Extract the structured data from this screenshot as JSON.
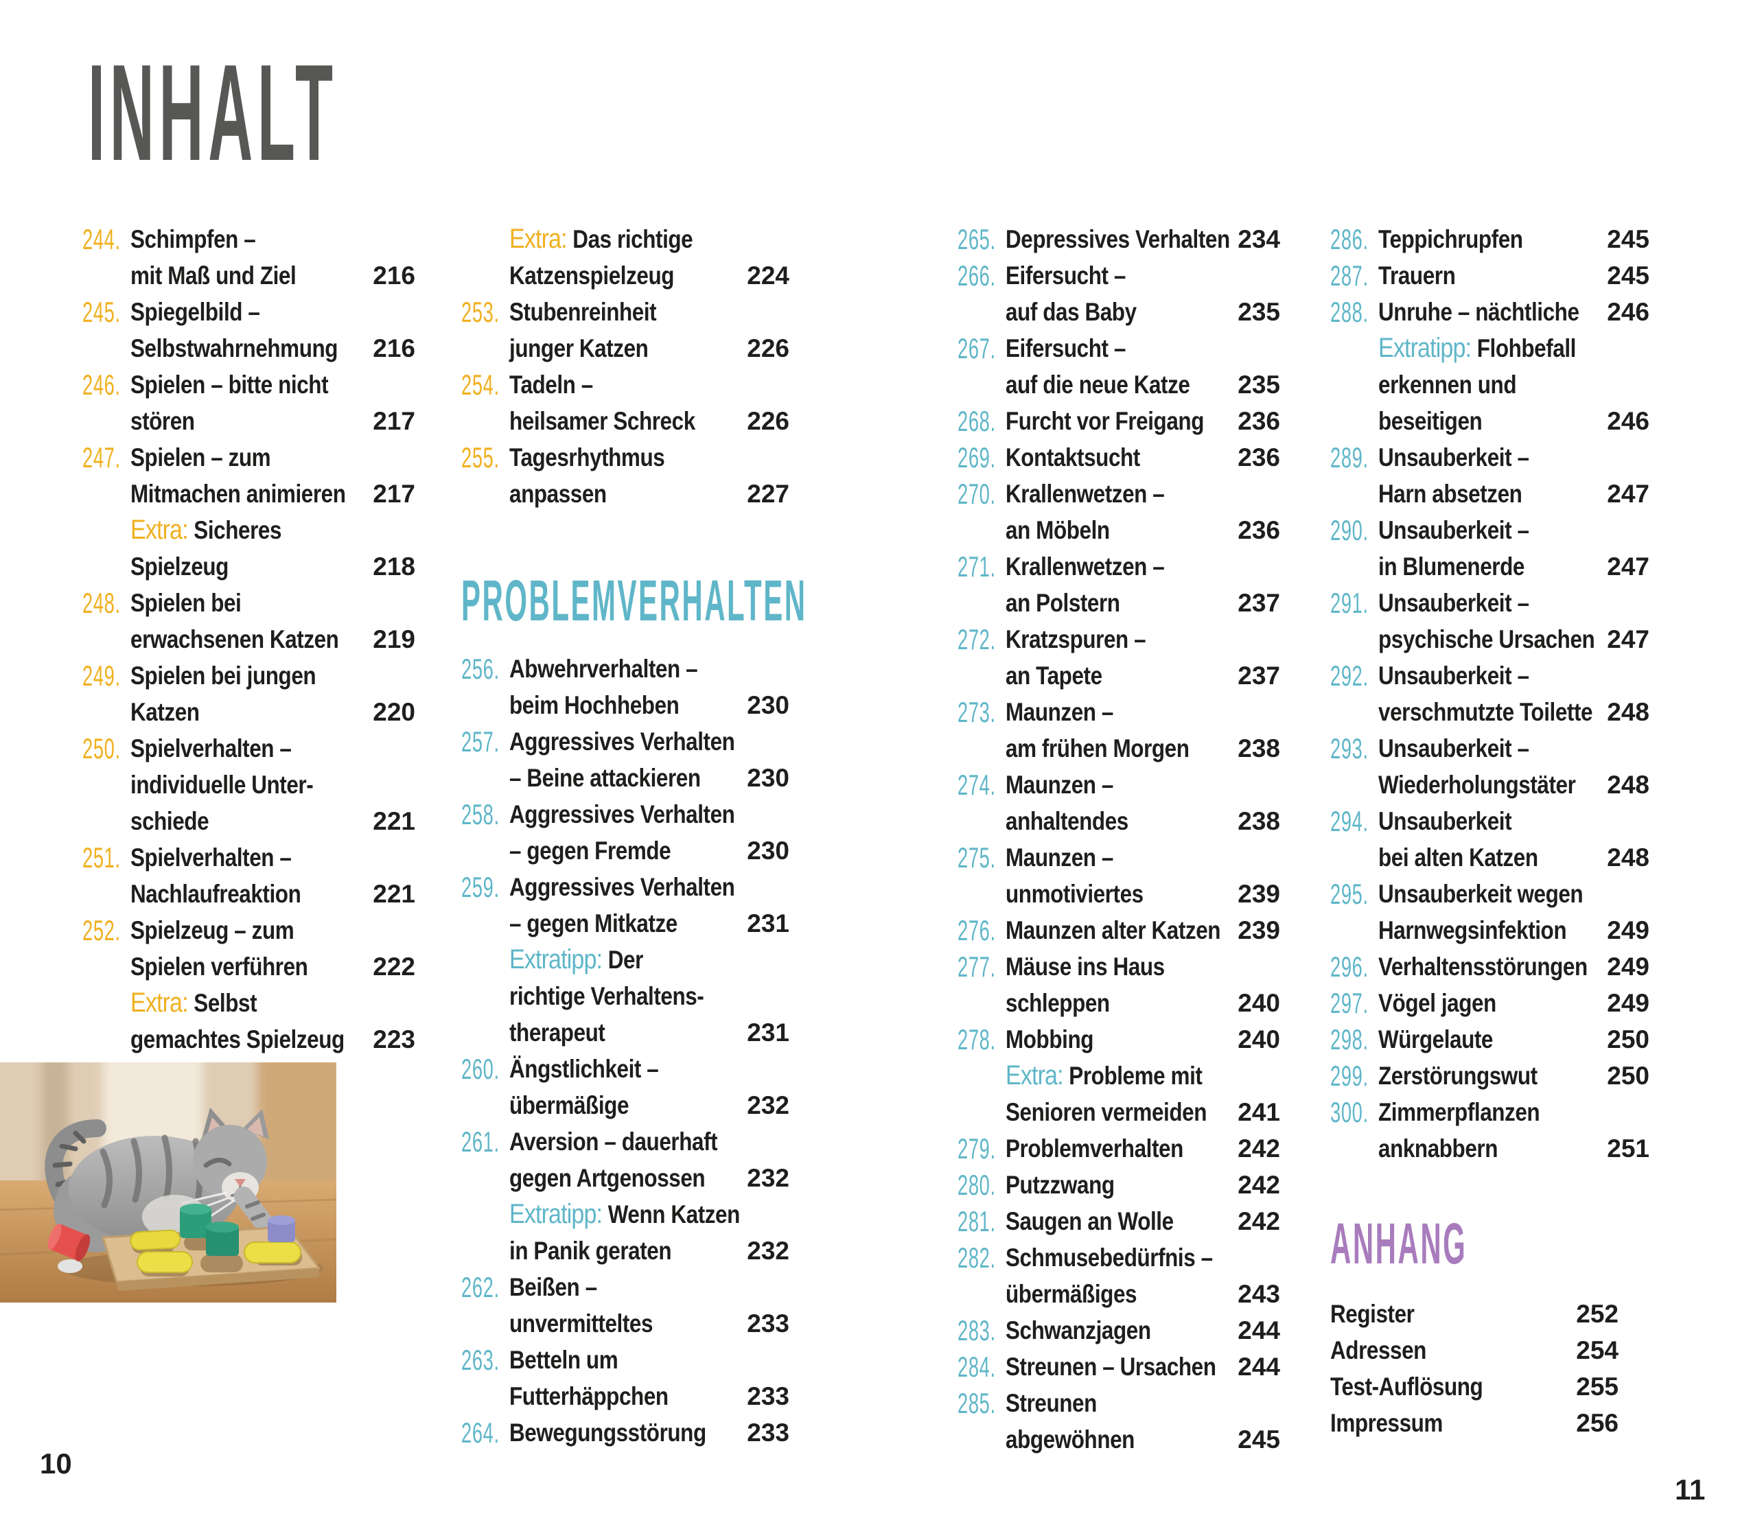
{
  "page": {
    "title": "INHALT",
    "page_number_left": "10",
    "page_number_right": "11"
  },
  "sections": {
    "problemverhalten_heading": "PROBLEMVERHALTEN",
    "anhang_heading": "ANHANG"
  },
  "colors": {
    "yellow": "#f0b01f",
    "blue": "#5fb6c8",
    "purple": "#a87cbc",
    "text": "#1e1e1c",
    "title_gray": "#575755"
  },
  "photo": {
    "alt": "Graue getigerte Katze spielt mit einem Holz-Strategiebrett mit bunten Kegeln"
  },
  "columns": {
    "col1": [
      {
        "n": "244.",
        "t": "Schimpfen –"
      },
      {
        "t": "mit Maß und Ziel",
        "p": "216"
      },
      {
        "n": "245.",
        "t": "Spiegelbild –"
      },
      {
        "t": "Selbstwahrnehmung",
        "p": "216"
      },
      {
        "n": "246.",
        "t": "Spielen – bitte nicht"
      },
      {
        "t": "stören",
        "p": "217"
      },
      {
        "n": "247.",
        "t": "Spielen – zum"
      },
      {
        "t": "Mitmachen animieren",
        "p": "217"
      },
      {
        "x": "Extra:",
        "t": "Sicheres"
      },
      {
        "t": "Spielzeug",
        "p": "218"
      },
      {
        "n": "248.",
        "t": "Spielen bei"
      },
      {
        "t": "erwachsenen Katzen",
        "p": "219"
      },
      {
        "n": "249.",
        "t": "Spielen bei jungen"
      },
      {
        "t": "Katzen",
        "p": "220"
      },
      {
        "n": "250.",
        "t": "Spielverhalten –"
      },
      {
        "t": "individuelle Unter-"
      },
      {
        "t": "schiede",
        "p": "221"
      },
      {
        "n": "251.",
        "t": "Spielverhalten –"
      },
      {
        "t": "Nachlaufreaktion",
        "p": "221"
      },
      {
        "n": "252.",
        "t": "Spielzeug – zum"
      },
      {
        "t": "Spielen verführen",
        "p": "222"
      },
      {
        "x": "Extra:",
        "t": "Selbst"
      },
      {
        "t": "gemachtes Spielzeug",
        "p": "223"
      }
    ],
    "col2_top": [
      {
        "x": "Extra:",
        "t": "Das richtige"
      },
      {
        "t": "Katzenspielzeug",
        "p": "224"
      },
      {
        "n": "253.",
        "t": "Stubenreinheit"
      },
      {
        "t": "junger Katzen",
        "p": "226"
      },
      {
        "n": "254.",
        "t": "Tadeln –"
      },
      {
        "t": "heilsamer Schreck",
        "p": "226"
      },
      {
        "n": "255.",
        "t": "Tagesrhythmus"
      },
      {
        "t": "anpassen",
        "p": "227"
      }
    ],
    "col2_bottom": [
      {
        "n": "256.",
        "t": "Abwehrverhalten –"
      },
      {
        "t": "beim Hochheben",
        "p": "230"
      },
      {
        "n": "257.",
        "t": "Aggressives Verhalten"
      },
      {
        "t": "– Beine attackieren",
        "p": "230"
      },
      {
        "n": "258.",
        "t": "Aggressives Verhalten"
      },
      {
        "t": "– gegen Fremde",
        "p": "230"
      },
      {
        "n": "259.",
        "t": "Aggressives Verhalten"
      },
      {
        "t": "– gegen Mitkatze",
        "p": "231"
      },
      {
        "x": "Extratipp:",
        "t": "Der"
      },
      {
        "t": "richtige Verhaltens-"
      },
      {
        "t": "therapeut",
        "p": "231"
      },
      {
        "n": "260.",
        "t": "Ängstlichkeit –"
      },
      {
        "t": "übermäßige",
        "p": "232"
      },
      {
        "n": "261.",
        "t": "Aversion – dauerhaft"
      },
      {
        "t": "gegen Artgenossen",
        "p": "232"
      },
      {
        "x": "Extratipp:",
        "t": "Wenn Katzen"
      },
      {
        "t": "in Panik geraten",
        "p": "232"
      },
      {
        "n": "262.",
        "t": "Beißen –"
      },
      {
        "t": "unvermitteltes",
        "p": "233"
      },
      {
        "n": "263.",
        "t": "Betteln um"
      },
      {
        "t": "Futterhäppchen",
        "p": "233"
      },
      {
        "n": "264.",
        "t": "Bewegungsstörung",
        "p": "233"
      }
    ],
    "col3": [
      {
        "n": "265.",
        "t": "Depressives Verhalten",
        "p": "234"
      },
      {
        "n": "266.",
        "t": "Eifersucht –"
      },
      {
        "t": "auf das Baby",
        "p": "235"
      },
      {
        "n": "267.",
        "t": "Eifersucht –"
      },
      {
        "t": "auf die neue Katze",
        "p": "235"
      },
      {
        "n": "268.",
        "t": "Furcht vor Freigang",
        "p": "236"
      },
      {
        "n": "269.",
        "t": "Kontaktsucht",
        "p": "236"
      },
      {
        "n": "270.",
        "t": "Krallenwetzen –"
      },
      {
        "t": "an Möbeln",
        "p": "236"
      },
      {
        "n": "271.",
        "t": "Krallenwetzen –"
      },
      {
        "t": "an Polstern",
        "p": "237"
      },
      {
        "n": "272.",
        "t": "Kratzspuren –"
      },
      {
        "t": "an Tapete",
        "p": "237"
      },
      {
        "n": "273.",
        "t": "Maunzen –"
      },
      {
        "t": "am frühen Morgen",
        "p": "238"
      },
      {
        "n": "274.",
        "t": "Maunzen –"
      },
      {
        "t": "anhaltendes",
        "p": "238"
      },
      {
        "n": "275.",
        "t": "Maunzen –"
      },
      {
        "t": "unmotiviertes",
        "p": "239"
      },
      {
        "n": "276.",
        "t": "Maunzen alter Katzen",
        "p": "239"
      },
      {
        "n": "277.",
        "t": "Mäuse ins Haus"
      },
      {
        "t": "schleppen",
        "p": "240"
      },
      {
        "n": "278.",
        "t": "Mobbing",
        "p": "240"
      },
      {
        "x": "Extra:",
        "t": "Probleme mit"
      },
      {
        "t": "Senioren vermeiden",
        "p": "241"
      },
      {
        "n": "279.",
        "t": "Problemverhalten",
        "p": "242"
      },
      {
        "n": "280.",
        "t": "Putzzwang",
        "p": "242"
      },
      {
        "n": "281.",
        "t": "Saugen an Wolle",
        "p": "242"
      },
      {
        "n": "282.",
        "t": "Schmusebedürfnis –"
      },
      {
        "t": "übermäßiges",
        "p": "243"
      },
      {
        "n": "283.",
        "t": "Schwanzjagen",
        "p": "244"
      },
      {
        "n": "284.",
        "t": "Streunen – Ursachen",
        "p": "244"
      },
      {
        "n": "285.",
        "t": "Streunen"
      },
      {
        "t": "abgewöhnen",
        "p": "245"
      }
    ],
    "col4": [
      {
        "n": "286.",
        "t": "Teppichrupfen",
        "p": "245"
      },
      {
        "n": "287.",
        "t": "Trauern",
        "p": "245"
      },
      {
        "n": "288.",
        "t": "Unruhe – nächtliche",
        "p": "246"
      },
      {
        "x": "Extratipp:",
        "t": "Flohbefall"
      },
      {
        "t": "erkennen und"
      },
      {
        "t": "beseitigen",
        "p": "246"
      },
      {
        "n": "289.",
        "t": "Unsauberkeit –"
      },
      {
        "t": "Harn absetzen",
        "p": "247"
      },
      {
        "n": "290.",
        "t": "Unsauberkeit –"
      },
      {
        "t": "in Blumenerde",
        "p": "247"
      },
      {
        "n": "291.",
        "t": "Unsauberkeit –"
      },
      {
        "t": "psychische Ursachen",
        "p": "247"
      },
      {
        "n": "292.",
        "t": "Unsauberkeit –"
      },
      {
        "t": "verschmutzte Toilette",
        "p": "248"
      },
      {
        "n": "293.",
        "t": "Unsauberkeit –"
      },
      {
        "t": "Wiederholungstäter",
        "p": "248"
      },
      {
        "n": "294.",
        "t": "Unsauberkeit"
      },
      {
        "t": "bei alten Katzen",
        "p": "248"
      },
      {
        "n": "295.",
        "t": "Unsauberkeit wegen"
      },
      {
        "t": "Harnwegsinfektion",
        "p": "249"
      },
      {
        "n": "296.",
        "t": "Verhaltensstörungen",
        "p": "249"
      },
      {
        "n": "297.",
        "t": "Vögel jagen",
        "p": "249"
      },
      {
        "n": "298.",
        "t": "Würgelaute",
        "p": "250"
      },
      {
        "n": "299.",
        "t": "Zerstörungswut",
        "p": "250"
      },
      {
        "n": "300.",
        "t": "Zimmerpflanzen"
      },
      {
        "t": "anknabbern",
        "p": "251"
      }
    ],
    "anhang": [
      {
        "t": "Register",
        "p": "252"
      },
      {
        "t": "Adressen",
        "p": "254"
      },
      {
        "t": "Test-Auflösung",
        "p": "255"
      },
      {
        "t": "Impressum",
        "p": "256"
      }
    ]
  }
}
